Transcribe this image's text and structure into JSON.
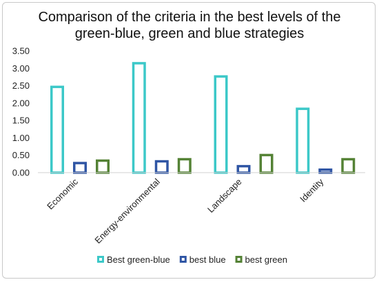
{
  "chart_data": {
    "type": "bar",
    "title_lines": [
      "Comparison of the criteria in the best levels of the",
      "green-blue, green and blue strategies"
    ],
    "categories": [
      "Economic",
      "Energy-environmental",
      "Landscape",
      "Identity"
    ],
    "series": [
      {
        "name": "Best green-blue",
        "color": "#3cc8c8",
        "values": [
          2.5,
          3.18,
          2.8,
          1.87
        ]
      },
      {
        "name": "best blue",
        "color": "#2f55a4",
        "values": [
          0.31,
          0.36,
          0.22,
          0.12
        ]
      },
      {
        "name": "best green",
        "color": "#548235",
        "values": [
          0.38,
          0.42,
          0.54,
          0.42
        ]
      }
    ],
    "ylim": [
      0,
      3.5
    ],
    "yticks": [
      "0.00",
      "0.50",
      "1.00",
      "1.50",
      "2.00",
      "2.50",
      "3.00",
      "3.50"
    ],
    "grid": false,
    "legend_position": "bottom"
  }
}
